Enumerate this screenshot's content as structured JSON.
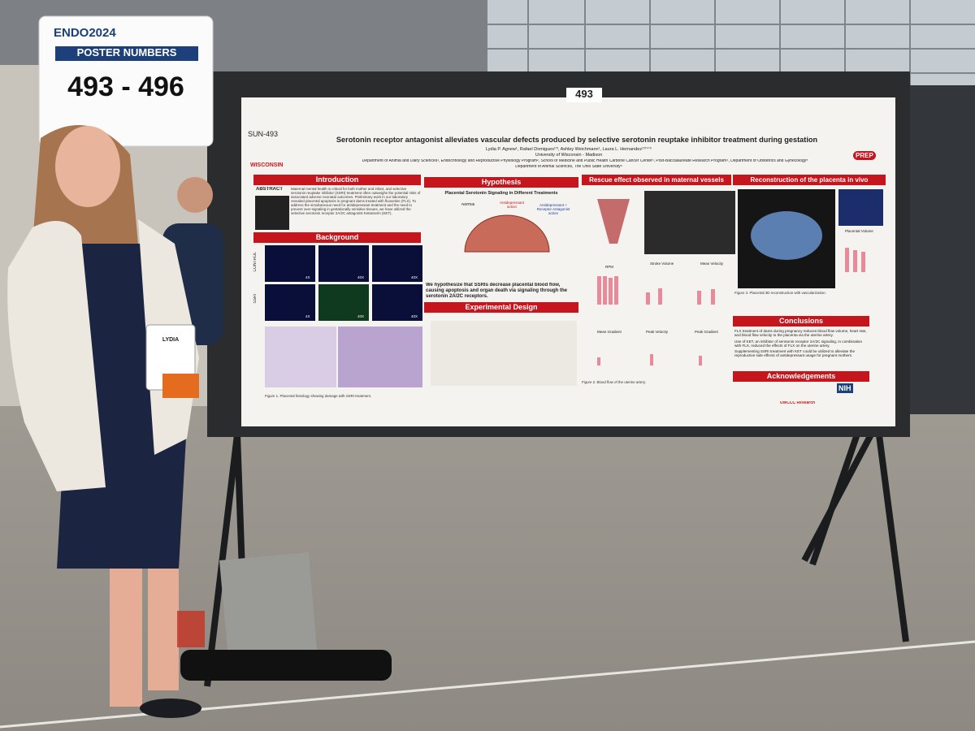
{
  "sign": {
    "event": "ENDO2024",
    "heading": "POSTER NUMBERS",
    "numbers": "493 - 496"
  },
  "board_number": "493",
  "badge_name": "LYDIA",
  "poster": {
    "id": "SUN-493",
    "logo_left": "WISCONSIN",
    "logo_right": "PREP",
    "title": "Serotonin receptor antagonist alleviates vascular defects produced by selective serotonin reuptake inhibitor treatment during gestation",
    "authors": "Lydia P. Agnew¹, Rafael Domigues¹ʼ³, Ashley Weichmann¹, Laura L. Hernandez¹ʼ²ʼ⁴ʼ⁵",
    "university": "University of Wisconsin - Madison",
    "departments": "Department of Animal and Dairy Sciences¹, Endocrinology and Reproductive Physiology Program², School of Medicine and Public Health Carbone Cancer Center³, Post-Baccalaureate Research Program⁴, Department of Obstetrics and Gynecology⁵",
    "departments_2": "Department of Animal Sciences, The Ohio State University⁶",
    "introduction": {
      "heading": "Introduction",
      "abstract_label": "ABSTRACT",
      "text": "Maternal mental health is critical for both mother and infant, and selective serotonin reuptake inhibitor (SSRI) treatment often outweighs the potential risks of associated adverse neonatal outcomes. Preliminary work in our laboratory revealed placental apoptosis in pregnant dams treated with fluoxetine (FLX). To address the simultaneous need for antidepressant treatment and the need to prevent over-signaling in gestationally sensitive tissues, we have utilized the selective serotonin receptor 2A/2C antagonist Ketanserin (KET)."
    },
    "background": {
      "heading": "Background",
      "row_labels": [
        "CONTROL",
        "SSRI"
      ],
      "magnifications": [
        "4X",
        "40X",
        "40X",
        "4X",
        "40X",
        "40X"
      ],
      "caption": "Figure 1. Placental histology showing damage with SSRI treatment."
    },
    "hypothesis": {
      "heading": "Hypothesis",
      "subtitle": "Placental Serotonin Signaling in Different Treatments",
      "labels": [
        "Normal",
        "Antidepressant action",
        "Antidepressant + Receptor Antagonist action"
      ],
      "statement": "We hypothesize that SSRIs decrease placental blood flow, causing apoptosis and organ death via signaling through the serotonin 2A/2C receptors."
    },
    "design": {
      "heading": "Experimental Design"
    },
    "rescue": {
      "heading": "Rescue effect observed in maternal vessels",
      "panels": [
        "RPM",
        "Stroke Volume",
        "Mean Velocity",
        "Mean Gradient",
        "Peak Velocity",
        "Peak Gradient"
      ],
      "caption": "Figure 2. Blood flow of the uterine artery."
    },
    "reconstruction": {
      "heading": "Reconstruction of the placenta in vivo",
      "panel": "Placental Volume",
      "caption": "Figure 3. Placental 3D reconstruction with vascularization."
    },
    "conclusions": {
      "heading": "Conclusions",
      "points": [
        "FLX treatment of dams during pregnancy reduces blood flow volume, heart rate, and blood flow velocity to the placenta via the uterine artery.",
        "Use of KET, an inhibitor of serotonin receptor 2A/2C signaling, in combination with FLX, reduced the effects of FLX on the uterine artery.",
        "Supplementing SSRI treatment with KET could be utilized to alleviate the reproductive side effects of antidepressant usage for pregnant mothers."
      ]
    },
    "acknowledgements": {
      "heading": "Acknowledgements",
      "logos": [
        "NIH",
        "UWCCC Research"
      ]
    }
  }
}
